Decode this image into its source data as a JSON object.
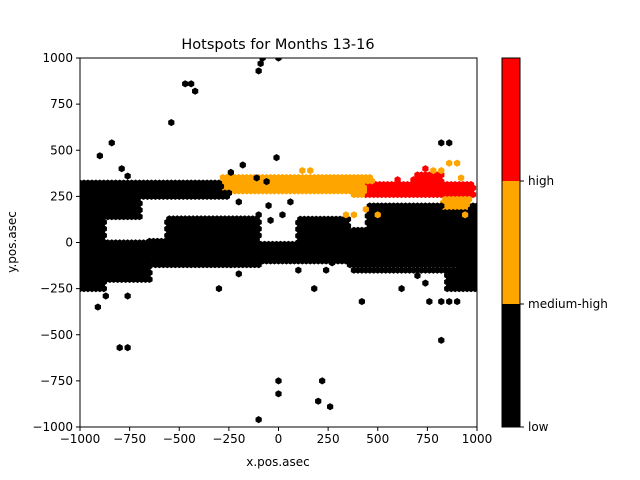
{
  "chart_data": {
    "type": "heatmap",
    "title": "Hotspots for Months 13-16",
    "xlabel": "x.pos.asec",
    "ylabel": "y.pos.asec",
    "xlim": [
      -1000,
      1000
    ],
    "ylim": [
      -1000,
      1000
    ],
    "xticks": [
      -1000,
      -750,
      -500,
      -250,
      0,
      250,
      500,
      750,
      1000
    ],
    "yticks": [
      -1000,
      -750,
      -500,
      -250,
      0,
      250,
      500,
      750,
      1000
    ],
    "xtick_labels": [
      "−1000",
      "−750",
      "−500",
      "−250",
      "0",
      "250",
      "500",
      "750",
      "1000"
    ],
    "ytick_labels": [
      "−1000",
      "−750",
      "−500",
      "−250",
      "0",
      "250",
      "500",
      "750",
      "1000"
    ],
    "grid": false,
    "colorbar": {
      "levels": [
        "low",
        "medium-high",
        "high"
      ],
      "colors": [
        "#000000",
        "#ffa500",
        "#ff0000"
      ]
    },
    "marker": "hexagon",
    "level_colors": {
      "low": "#000000",
      "medium-high": "#ffa500",
      "high": "#ff0000"
    },
    "black_regions": [
      {
        "x": [
          -1000,
          -250
        ],
        "y": [
          250,
          330
        ]
      },
      {
        "x": [
          -1000,
          -700
        ],
        "y": [
          140,
          250
        ]
      },
      {
        "x": [
          -1000,
          -880
        ],
        "y": [
          -250,
          140
        ]
      },
      {
        "x": [
          -1000,
          -650
        ],
        "y": [
          -200,
          0
        ]
      },
      {
        "x": [
          -650,
          -100
        ],
        "y": [
          -120,
          20
        ]
      },
      {
        "x": [
          -560,
          -100
        ],
        "y": [
          20,
          140
        ]
      },
      {
        "x": [
          -100,
          350
        ],
        "y": [
          -100,
          0
        ]
      },
      {
        "x": [
          350,
          900
        ],
        "y": [
          -120,
          60
        ]
      },
      {
        "x": [
          380,
          1000
        ],
        "y": [
          -150,
          80
        ]
      },
      {
        "x": [
          450,
          1000
        ],
        "y": [
          90,
          200
        ]
      },
      {
        "x": [
          850,
          1000
        ],
        "y": [
          -250,
          -50
        ]
      },
      {
        "x": [
          100,
          350
        ],
        "y": [
          0,
          140
        ]
      }
    ],
    "orange_regions": [
      {
        "x": [
          -280,
          470
        ],
        "y": [
          280,
          360
        ]
      },
      {
        "x": [
          380,
          470
        ],
        "y": [
          260,
          300
        ]
      },
      {
        "x": [
          830,
          960
        ],
        "y": [
          180,
          300
        ]
      }
    ],
    "red_regions": [
      {
        "x": [
          440,
          980
        ],
        "y": [
          260,
          330
        ]
      },
      {
        "x": [
          700,
          820
        ],
        "y": [
          330,
          370
        ]
      }
    ],
    "black_points": [
      [
        -200,
        220
      ],
      [
        -100,
        150
      ],
      [
        -50,
        200
      ],
      [
        20,
        150
      ],
      [
        60,
        220
      ],
      [
        -40,
        120
      ],
      [
        -10,
        460
      ],
      [
        -180,
        420
      ],
      [
        -240,
        380
      ],
      [
        -110,
        350
      ],
      [
        -60,
        330
      ],
      [
        -900,
        470
      ],
      [
        -840,
        540
      ],
      [
        -790,
        400
      ],
      [
        -760,
        360
      ],
      [
        -540,
        650
      ],
      [
        -470,
        860
      ],
      [
        -440,
        860
      ],
      [
        -420,
        820
      ],
      [
        -100,
        930
      ],
      [
        -90,
        970
      ],
      [
        -80,
        1000
      ],
      [
        0,
        1000
      ],
      [
        -800,
        -570
      ],
      [
        -760,
        -570
      ],
      [
        -760,
        -290
      ],
      [
        -910,
        -350
      ],
      [
        -870,
        -290
      ],
      [
        -300,
        -250
      ],
      [
        -200,
        -170
      ],
      [
        -240,
        -120
      ],
      [
        180,
        -250
      ],
      [
        100,
        -150
      ],
      [
        240,
        -150
      ],
      [
        270,
        -110
      ],
      [
        420,
        -320
      ],
      [
        620,
        -250
      ],
      [
        700,
        -180
      ],
      [
        740,
        -220
      ],
      [
        760,
        -320
      ],
      [
        820,
        -320
      ],
      [
        860,
        -320
      ],
      [
        900,
        -320
      ],
      [
        820,
        -530
      ],
      [
        820,
        540
      ],
      [
        860,
        540
      ],
      [
        0,
        -750
      ],
      [
        0,
        -820
      ],
      [
        220,
        -750
      ],
      [
        200,
        -860
      ],
      [
        260,
        -890
      ],
      [
        -100,
        -960
      ],
      [
        560,
        150
      ],
      [
        520,
        120
      ],
      [
        440,
        -60
      ],
      [
        320,
        -40
      ]
    ],
    "orange_points": [
      [
        120,
        390
      ],
      [
        160,
        390
      ],
      [
        340,
        150
      ],
      [
        380,
        150
      ],
      [
        440,
        180
      ],
      [
        500,
        150
      ],
      [
        780,
        390
      ],
      [
        820,
        390
      ],
      [
        860,
        430
      ],
      [
        900,
        430
      ],
      [
        920,
        350
      ],
      [
        940,
        150
      ]
    ],
    "red_points": [
      [
        740,
        400
      ],
      [
        600,
        340
      ],
      [
        680,
        340
      ],
      [
        720,
        300
      ]
    ]
  }
}
